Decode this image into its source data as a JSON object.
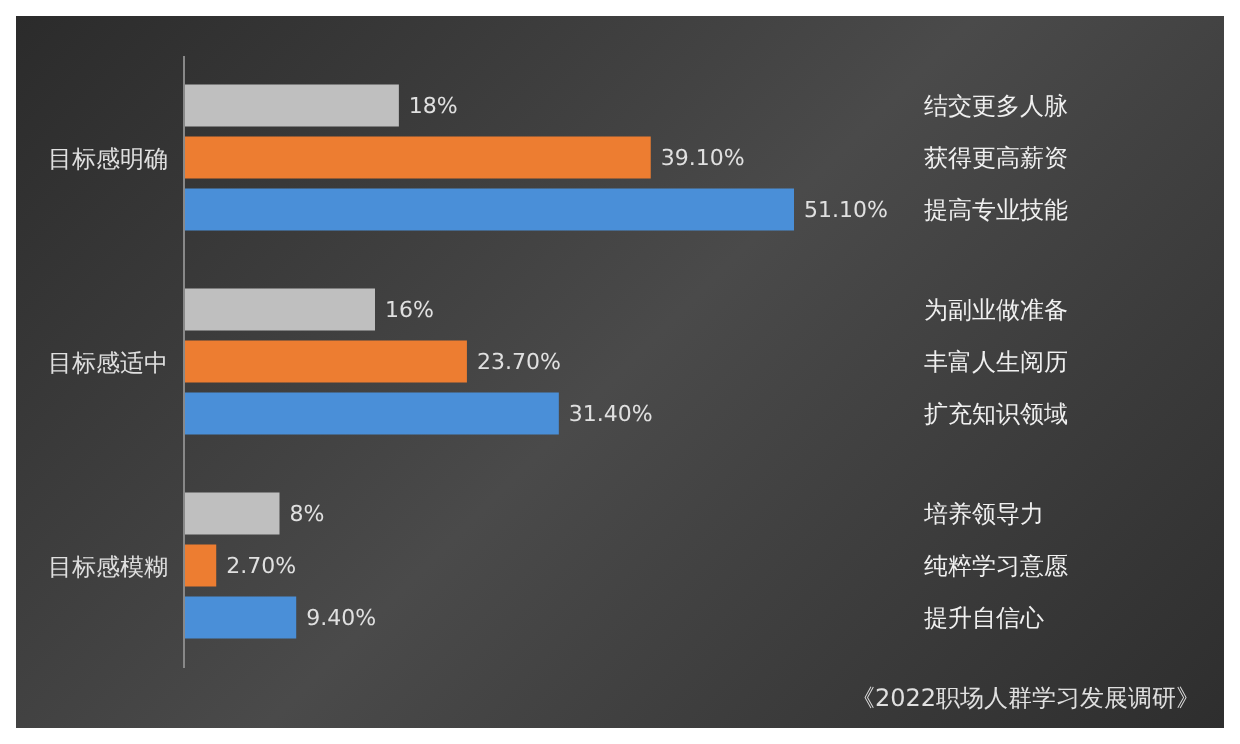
{
  "chart_data": {
    "type": "bar",
    "orientation": "horizontal",
    "categories": [
      "目标感明确",
      "目标感适中",
      "目标感模糊"
    ],
    "series": [
      {
        "color": "#bfbfbf",
        "values": [
          18,
          16,
          8
        ],
        "value_labels": [
          "18%",
          "16%",
          "8%"
        ]
      },
      {
        "color": "#ed7d31",
        "values": [
          39.1,
          23.7,
          2.7
        ],
        "value_labels": [
          "39.10%",
          "23.70%",
          "2.70%"
        ]
      },
      {
        "color": "#4a8fd8",
        "values": [
          51.1,
          31.4,
          9.4
        ],
        "value_labels": [
          "51.10%",
          "31.40%",
          "9.40%"
        ]
      }
    ],
    "annotations": [
      "结交更多人脉",
      "获得更高薪资",
      "提高专业技能",
      "为副业做准备",
      "丰富人生阅历",
      "扩充知识领域",
      "培养领导力",
      "纯粹学习意愿",
      "提升自信心",
      "《2022职场人群学习发展调研》"
    ],
    "grid": false,
    "legend": false
  }
}
